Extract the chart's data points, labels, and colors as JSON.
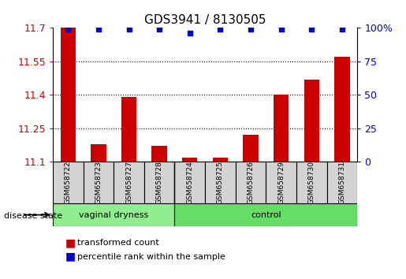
{
  "title": "GDS3941 / 8130505",
  "samples": [
    "GSM658722",
    "GSM658723",
    "GSM658727",
    "GSM658728",
    "GSM658724",
    "GSM658725",
    "GSM658726",
    "GSM658729",
    "GSM658730",
    "GSM658731"
  ],
  "transformed_count": [
    11.7,
    11.18,
    11.39,
    11.17,
    11.12,
    11.12,
    11.22,
    11.4,
    11.47,
    11.57
  ],
  "percentile_rank": [
    99,
    99,
    99,
    99,
    96,
    99,
    99,
    99,
    99,
    99
  ],
  "groups": {
    "vaginal dryness": [
      0,
      1,
      2,
      3
    ],
    "control": [
      4,
      5,
      6,
      7,
      8,
      9
    ]
  },
  "ylim": [
    11.1,
    11.7
  ],
  "yticks": [
    11.1,
    11.25,
    11.4,
    11.55,
    11.7
  ],
  "right_yticks": [
    0,
    25,
    50,
    75,
    100
  ],
  "right_ylim": [
    0,
    100
  ],
  "bar_color": "#cc0000",
  "dot_color": "#0000cc",
  "group1_color": "#90ee90",
  "group2_color": "#00cc44",
  "background_color": "#ffffff",
  "tick_label_color_left": "#cc0000",
  "tick_label_color_right": "#0000cc",
  "legend_bar_label": "transformed count",
  "legend_dot_label": "percentile rank within the sample",
  "group_label": "disease state",
  "figsize": [
    5.15,
    3.54
  ],
  "dpi": 100
}
